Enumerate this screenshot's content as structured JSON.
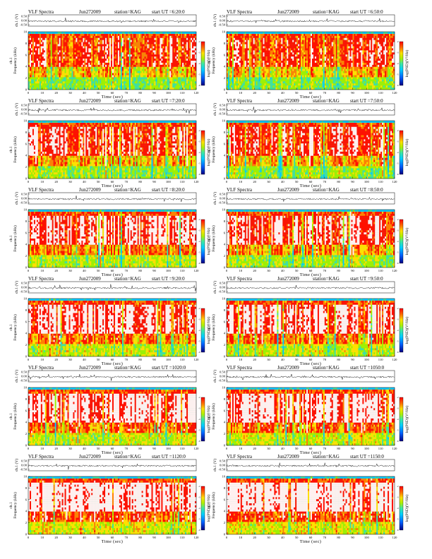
{
  "chart_data": {
    "type": "heatmap",
    "panels": [
      {
        "title": "VLF Spectra",
        "date": "Jun272009",
        "station": "station=KAG",
        "start": "start  UT =6:20:0"
      },
      {
        "title": "VLF Spectra",
        "date": "Jun272009",
        "station": "station=KAG",
        "start": "start  UT =6:50:0"
      },
      {
        "title": "VLF Spectra",
        "date": "Jun272009",
        "station": "station=KAG",
        "start": "start  UT =7:20:0"
      },
      {
        "title": "VLF Spectra",
        "date": "Jun272009",
        "station": "station=KAG",
        "start": "start  UT =7:50:0"
      },
      {
        "title": "VLF Spectra",
        "date": "Jun272009",
        "station": "station=KAG",
        "start": "start  UT =8:20:0"
      },
      {
        "title": "VLF Spectra",
        "date": "Jun272009",
        "station": "station=KAG",
        "start": "start  UT =8:50:0"
      },
      {
        "title": "VLF Spectra",
        "date": "Jun272009",
        "station": "station=KAG",
        "start": "start  UT =9:20:0"
      },
      {
        "title": "VLF Spectra",
        "date": "Jun272009",
        "station": "station=KAG",
        "start": "start  UT =9:50:0"
      },
      {
        "title": "VLF Spectra",
        "date": "Jun272009",
        "station": "station=KAG",
        "start": "start  UT =1020:0"
      },
      {
        "title": "VLF Spectra",
        "date": "Jun272009",
        "station": "station=KAG",
        "start": "start  UT =1050:0"
      },
      {
        "title": "VLF Spectra",
        "date": "Jun272009",
        "station": "station=KAG",
        "start": "start  UT =1120:0"
      },
      {
        "title": "VLF Spectra",
        "date": "Jun272009",
        "station": "station=KAG",
        "start": "start  UT =1150:0"
      }
    ],
    "waveform": {
      "ylabel": "ch.1 (V)",
      "yticks": [
        "0.50",
        "0.00",
        "-0.50"
      ],
      "ylim": [
        -0.5,
        0.5
      ]
    },
    "spectrogram": {
      "ylabel_ch": "ch.1",
      "ylabel": "Frequency (kHz)",
      "yticks": [
        "0",
        "2",
        "4",
        "6",
        "8",
        "10"
      ],
      "ylim": [
        0,
        10
      ],
      "xlabel": "Time (sec)",
      "xticks": [
        "0",
        "10",
        "20",
        "30",
        "40",
        "50",
        "60",
        "70",
        "80",
        "90",
        "100",
        "110",
        "120"
      ],
      "xlim": [
        0,
        120
      ]
    },
    "colorbar": {
      "label": "log(PSD)(V²/Hz)",
      "ticks": [
        "-2",
        "-3",
        "-4",
        "-5",
        "-6"
      ],
      "colors": [
        "#0000a0",
        "#0050ff",
        "#00c0ff",
        "#40e0a0",
        "#a0f000",
        "#ffe000",
        "#ff8000",
        "#ff0000"
      ]
    }
  }
}
